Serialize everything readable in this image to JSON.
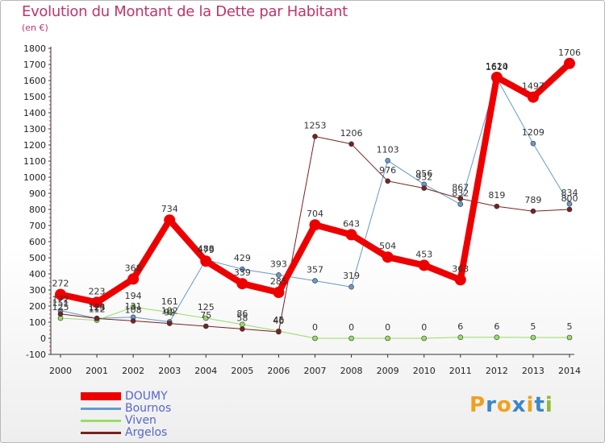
{
  "header": {
    "title": "Evolution du Montant de la Dette par Habitant",
    "subtitle": "(en €)"
  },
  "logo": {
    "text": "Proxiti",
    "letters": [
      {
        "ch": "P",
        "color": "#f0a020"
      },
      {
        "ch": "r",
        "color": "#3a86c8"
      },
      {
        "ch": "o",
        "color": "#f0a020"
      },
      {
        "ch": "x",
        "color": "#3a86c8"
      },
      {
        "ch": "i",
        "color": "#f0a020"
      },
      {
        "ch": "t",
        "color": "#3a86c8"
      },
      {
        "ch": "i",
        "color": "#8dbb3a"
      }
    ]
  },
  "chart_data": {
    "type": "line",
    "title": "Evolution du Montant de la Dette par Habitant",
    "ylabel": "(en €)",
    "xlabel": "",
    "ylim": [
      -100,
      1800
    ],
    "y_ticks": [
      -100,
      0,
      100,
      200,
      300,
      400,
      500,
      600,
      700,
      800,
      900,
      1000,
      1100,
      1200,
      1300,
      1400,
      1500,
      1600,
      1700,
      1800
    ],
    "x": [
      "2000",
      "2001",
      "2002",
      "2003",
      "2004",
      "2005",
      "2006",
      "2007",
      "2008",
      "2009",
      "2010",
      "2011",
      "2012",
      "2013",
      "2014"
    ],
    "grid": false,
    "legend_position": "bottom-left",
    "series": [
      {
        "name": "DOUMY",
        "color": "#ee0000",
        "line_width": 8,
        "marker_radius": 7,
        "values": [
          272,
          223,
          368,
          734,
          479,
          339,
          285,
          704,
          643,
          504,
          453,
          363,
          1620,
          1497,
          1706
        ]
      },
      {
        "name": "Bournos",
        "color": "#6699cc",
        "line_width": 1,
        "marker_radius": 3,
        "values": [
          172,
          124,
          131,
          102,
          488,
          429,
          393,
          357,
          319,
          1103,
          956,
          832,
          1614,
          1209,
          834
        ]
      },
      {
        "name": "Viven",
        "color": "#99dd66",
        "line_width": 1,
        "marker_radius": 3,
        "values": [
          125,
          112,
          194,
          161,
          125,
          86,
          45,
          0,
          0,
          0,
          0,
          6,
          6,
          5,
          5
        ]
      },
      {
        "name": "Argelos",
        "color": "#772222",
        "line_width": 1,
        "marker_radius": 3,
        "values": [
          151,
          123,
          108,
          92,
          75,
          58,
          40,
          1253,
          1206,
          976,
          932,
          867,
          819,
          789,
          800
        ]
      }
    ]
  }
}
